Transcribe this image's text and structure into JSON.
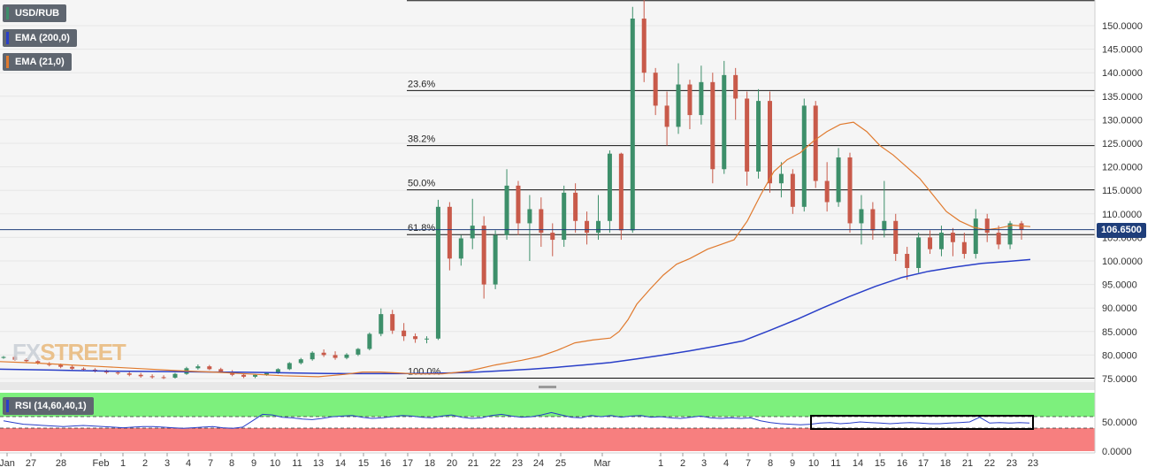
{
  "legend": {
    "symbol": "USD/RUB",
    "ema200": "EMA (200,0)",
    "ema21": "EMA (21,0)",
    "rsi": "RSI (14,60,40,1)"
  },
  "current_price": "106.6500",
  "watermark": {
    "left": "FX",
    "right": "STREET"
  },
  "colors": {
    "bull": "#3d8f6a",
    "bear": "#c85a4a",
    "ema200": "#2a3fc8",
    "ema21": "#e07a2e",
    "rsi_line": "#2a3fc8",
    "rsi_upper_zone": "#7df07d",
    "rsi_lower_zone": "#f77f7f",
    "background": "#f5f5f5"
  },
  "chart_data": [
    {
      "type": "candlestick",
      "title": "USD/RUB",
      "y_ticks": [
        "150.0000",
        "145.0000",
        "140.0000",
        "135.0000",
        "130.0000",
        "125.0000",
        "120.0000",
        "115.0000",
        "110.0000",
        "105.0000",
        "100.0000",
        "95.0000",
        "90.0000",
        "85.0000",
        "80.0000",
        "75.0000"
      ],
      "ylim": [
        74.5,
        155.5
      ],
      "x_tick_labels": [
        "Jan",
        "27",
        "28",
        "Feb",
        "1",
        "2",
        "3",
        "4",
        "7",
        "8",
        "9",
        "10",
        "11",
        "13",
        "14",
        "15",
        "16",
        "17",
        "18",
        "20",
        "21",
        "22",
        "23",
        "24",
        "25",
        "Mar",
        "1",
        "2",
        "3",
        "4",
        "7",
        "8",
        "9",
        "10",
        "11",
        "14",
        "15",
        "16",
        "17",
        "18",
        "21",
        "22",
        "23",
        "23"
      ],
      "fibonacci": {
        "levels": [
          {
            "label": "23.6%",
            "value": 136.2
          },
          {
            "label": "38.2%",
            "value": 124.5
          },
          {
            "label": "50.0%",
            "value": 115.1
          },
          {
            "label": "61.8%",
            "value": 105.6
          },
          {
            "label": "100.0%",
            "value": 75.1
          }
        ],
        "top": 155.3
      },
      "horizontal_line": 106.65,
      "candles": [
        [
          79.4,
          79.8,
          79.2,
          79.6
        ],
        [
          79.6,
          79.9,
          78.8,
          79.0
        ],
        [
          79.0,
          79.3,
          78.4,
          78.7
        ],
        [
          78.7,
          78.9,
          78.0,
          78.2
        ],
        [
          78.2,
          78.5,
          77.6,
          77.9
        ],
        [
          77.9,
          78.2,
          77.2,
          77.5
        ],
        [
          77.5,
          77.8,
          76.8,
          77.1
        ],
        [
          77.1,
          77.4,
          76.6,
          76.9
        ],
        [
          76.9,
          77.2,
          76.3,
          76.6
        ],
        [
          76.6,
          76.9,
          76.0,
          76.3
        ],
        [
          76.3,
          76.7,
          75.8,
          76.1
        ],
        [
          76.1,
          76.5,
          75.5,
          75.8
        ],
        [
          75.8,
          76.2,
          75.2,
          75.5
        ],
        [
          75.5,
          75.9,
          75.0,
          75.3
        ],
        [
          75.3,
          75.7,
          74.9,
          75.2
        ],
        [
          75.2,
          76.2,
          75.0,
          76.0
        ],
        [
          76.0,
          77.5,
          75.8,
          77.2
        ],
        [
          77.2,
          78.0,
          76.9,
          77.6
        ],
        [
          77.6,
          77.9,
          76.8,
          77.0
        ],
        [
          77.0,
          77.3,
          76.2,
          76.5
        ],
        [
          76.5,
          76.8,
          75.5,
          75.8
        ],
        [
          75.8,
          76.0,
          75.1,
          75.4
        ],
        [
          75.4,
          76.0,
          75.1,
          75.8
        ],
        [
          75.8,
          76.4,
          75.6,
          76.2
        ],
        [
          76.2,
          77.2,
          76.0,
          77.0
        ],
        [
          77.0,
          78.5,
          76.8,
          78.3
        ],
        [
          78.3,
          79.4,
          78.0,
          79.1
        ],
        [
          79.1,
          80.8,
          78.8,
          80.5
        ],
        [
          80.5,
          81.2,
          79.6,
          80.0
        ],
        [
          80.0,
          80.8,
          79.0,
          79.4
        ],
        [
          79.4,
          80.4,
          79.1,
          80.1
        ],
        [
          80.1,
          81.5,
          79.8,
          81.3
        ],
        [
          81.3,
          84.8,
          81.0,
          84.5
        ],
        [
          84.5,
          89.9,
          84.0,
          88.7
        ],
        [
          88.7,
          89.6,
          84.5,
          85.2
        ],
        [
          85.2,
          86.8,
          83.0,
          84.0
        ],
        [
          84.0,
          84.6,
          82.6,
          83.4
        ],
        [
          83.4,
          84.0,
          82.5,
          83.5
        ],
        [
          83.5,
          113.0,
          83.2,
          111.5
        ],
        [
          111.5,
          112.5,
          98.0,
          100.5
        ],
        [
          100.5,
          105.5,
          99.0,
          104.8
        ],
        [
          104.8,
          113.2,
          102.5,
          107.5
        ],
        [
          107.5,
          109.5,
          92.0,
          95.0
        ],
        [
          95.0,
          106.5,
          94.0,
          105.5
        ],
        [
          105.5,
          119.5,
          104.5,
          116.0
        ],
        [
          116.0,
          117.0,
          105.5,
          108.0
        ],
        [
          108.0,
          114.0,
          100.0,
          111.0
        ],
        [
          111.0,
          113.5,
          103.0,
          106.0
        ],
        [
          106.0,
          108.0,
          101.0,
          104.5
        ],
        [
          104.5,
          116.0,
          103.0,
          114.5
        ],
        [
          114.5,
          116.5,
          106.0,
          108.5
        ],
        [
          108.5,
          110.5,
          103.5,
          106.0
        ],
        [
          106.0,
          114.0,
          104.5,
          108.5
        ],
        [
          108.5,
          123.5,
          106.0,
          122.8
        ],
        [
          122.8,
          123.0,
          104.5,
          106.5
        ],
        [
          106.5,
          154.0,
          106.0,
          151.5
        ],
        [
          151.5,
          155.5,
          138.0,
          140.0
        ],
        [
          140.0,
          141.0,
          131.0,
          133.0
        ],
        [
          133.0,
          136.0,
          124.5,
          128.5
        ],
        [
          128.5,
          142.0,
          127.0,
          137.5
        ],
        [
          137.5,
          138.5,
          128.0,
          131.0
        ],
        [
          131.0,
          141.5,
          129.0,
          138.0
        ],
        [
          138.0,
          140.0,
          116.5,
          119.5
        ],
        [
          119.5,
          142.5,
          118.5,
          139.5
        ],
        [
          139.5,
          141.0,
          130.0,
          134.5
        ],
        [
          134.5,
          136.0,
          116.0,
          119.0
        ],
        [
          119.0,
          136.5,
          117.5,
          134.0
        ],
        [
          134.0,
          136.0,
          114.5,
          116.5
        ],
        [
          116.5,
          121.0,
          113.5,
          118.5
        ],
        [
          118.5,
          119.5,
          110.0,
          111.5
        ],
        [
          111.5,
          134.5,
          110.5,
          133.0
        ],
        [
          133.0,
          134.0,
          115.5,
          117.0
        ],
        [
          117.0,
          121.0,
          110.5,
          112.5
        ],
        [
          112.5,
          124.0,
          111.5,
          122.0
        ],
        [
          122.0,
          123.0,
          106.0,
          108.0
        ],
        [
          108.0,
          114.0,
          103.5,
          111.0
        ],
        [
          111.0,
          112.5,
          104.5,
          106.5
        ],
        [
          106.5,
          117.0,
          105.0,
          108.5
        ],
        [
          108.5,
          110.0,
          100.0,
          101.5
        ],
        [
          101.5,
          103.0,
          96.0,
          98.5
        ],
        [
          98.5,
          106.0,
          97.5,
          105.0
        ],
        [
          105.0,
          106.5,
          101.5,
          102.5
        ],
        [
          102.5,
          107.5,
          101.0,
          106.0
        ],
        [
          106.0,
          107.0,
          101.0,
          104.0
        ],
        [
          104.0,
          106.0,
          100.5,
          101.5
        ],
        [
          101.5,
          111.0,
          100.5,
          109.0
        ],
        [
          109.0,
          110.0,
          104.0,
          106.0
        ],
        [
          106.0,
          107.5,
          102.5,
          103.5
        ],
        [
          103.5,
          108.5,
          102.5,
          108.0
        ],
        [
          108.0,
          108.5,
          104.5,
          106.65
        ]
      ],
      "ema200": [
        [
          0,
          77.0
        ],
        [
          30,
          76.9
        ],
        [
          60,
          76.8
        ],
        [
          90,
          76.7
        ],
        [
          120,
          76.6
        ],
        [
          150,
          76.55
        ],
        [
          180,
          76.5
        ],
        [
          210,
          76.45
        ],
        [
          240,
          76.4
        ],
        [
          270,
          76.35
        ],
        [
          300,
          76.3
        ],
        [
          330,
          76.2
        ],
        [
          360,
          76.1
        ],
        [
          390,
          76.05
        ],
        [
          420,
          76.05
        ],
        [
          450,
          76.05
        ],
        [
          480,
          76.1
        ],
        [
          510,
          76.2
        ],
        [
          540,
          76.4
        ],
        [
          570,
          76.7
        ],
        [
          600,
          77.0
        ],
        [
          630,
          77.4
        ],
        [
          660,
          77.9
        ],
        [
          690,
          78.4
        ],
        [
          720,
          79.2
        ],
        [
          750,
          80.0
        ],
        [
          780,
          80.9
        ],
        [
          810,
          81.9
        ],
        [
          840,
          83.0
        ],
        [
          870,
          85.2
        ],
        [
          900,
          87.5
        ],
        [
          930,
          90.0
        ],
        [
          960,
          92.4
        ],
        [
          990,
          94.6
        ],
        [
          1020,
          96.5
        ],
        [
          1050,
          97.8
        ],
        [
          1080,
          98.7
        ],
        [
          1110,
          99.5
        ],
        [
          1140,
          99.9
        ],
        [
          1165,
          100.3
        ]
      ],
      "ema21": [
        [
          0,
          78.6
        ],
        [
          40,
          78.3
        ],
        [
          80,
          77.9
        ],
        [
          120,
          77.5
        ],
        [
          160,
          77.1
        ],
        [
          200,
          76.7
        ],
        [
          240,
          76.4
        ],
        [
          280,
          76.0
        ],
        [
          320,
          75.6
        ],
        [
          360,
          75.4
        ],
        [
          390,
          75.9
        ],
        [
          410,
          76.4
        ],
        [
          430,
          76.4
        ],
        [
          450,
          76.2
        ],
        [
          470,
          76.0
        ],
        [
          500,
          76.0
        ],
        [
          530,
          76.6
        ],
        [
          560,
          77.9
        ],
        [
          590,
          78.9
        ],
        [
          610,
          79.7
        ],
        [
          630,
          81.0
        ],
        [
          650,
          82.6
        ],
        [
          670,
          83.2
        ],
        [
          690,
          83.6
        ],
        [
          700,
          85.0
        ],
        [
          710,
          87.5
        ],
        [
          720,
          90.8
        ],
        [
          735,
          94.0
        ],
        [
          750,
          97.0
        ],
        [
          765,
          99.3
        ],
        [
          780,
          100.5
        ],
        [
          800,
          102.5
        ],
        [
          815,
          103.5
        ],
        [
          830,
          104.5
        ],
        [
          845,
          108.5
        ],
        [
          860,
          114.0
        ],
        [
          875,
          119.0
        ],
        [
          890,
          121.5
        ],
        [
          905,
          123.0
        ],
        [
          920,
          125.5
        ],
        [
          935,
          127.5
        ],
        [
          950,
          129.0
        ],
        [
          965,
          129.5
        ],
        [
          980,
          127.5
        ],
        [
          995,
          124.5
        ],
        [
          1010,
          122.5
        ],
        [
          1025,
          120.0
        ],
        [
          1040,
          117.5
        ],
        [
          1055,
          114.0
        ],
        [
          1070,
          110.5
        ],
        [
          1085,
          108.5
        ],
        [
          1100,
          107.2
        ],
        [
          1115,
          106.6
        ],
        [
          1130,
          107.0
        ],
        [
          1145,
          107.6
        ],
        [
          1165,
          107.3
        ]
      ],
      "rsi_ticks": [
        "50.0000",
        "0.0000"
      ],
      "rsi_levels": {
        "upper": 60,
        "lower": 40
      }
    }
  ]
}
